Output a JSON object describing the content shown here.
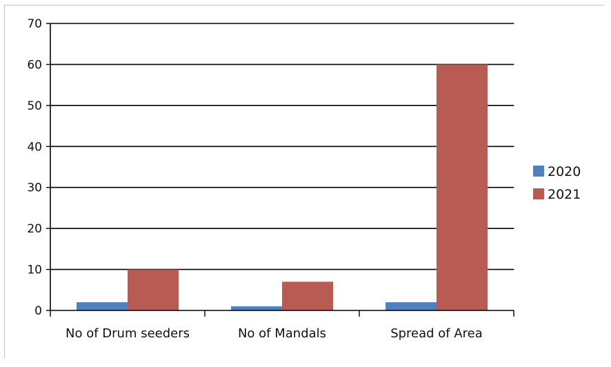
{
  "chart_data": {
    "type": "bar",
    "categories": [
      "No of Drum seeders",
      "No of Mandals",
      "Spread of Area"
    ],
    "series": [
      {
        "name": "2020",
        "values": [
          2,
          1,
          2
        ],
        "color": "#4f81bd"
      },
      {
        "name": "2021",
        "values": [
          10,
          7,
          60
        ],
        "color": "#b85b52"
      }
    ],
    "title": "",
    "xlabel": "",
    "ylabel": "",
    "ylim": [
      0,
      70
    ],
    "yticks": [
      0,
      10,
      20,
      30,
      40,
      50,
      60,
      70
    ],
    "grid": true,
    "legend": "right"
  }
}
